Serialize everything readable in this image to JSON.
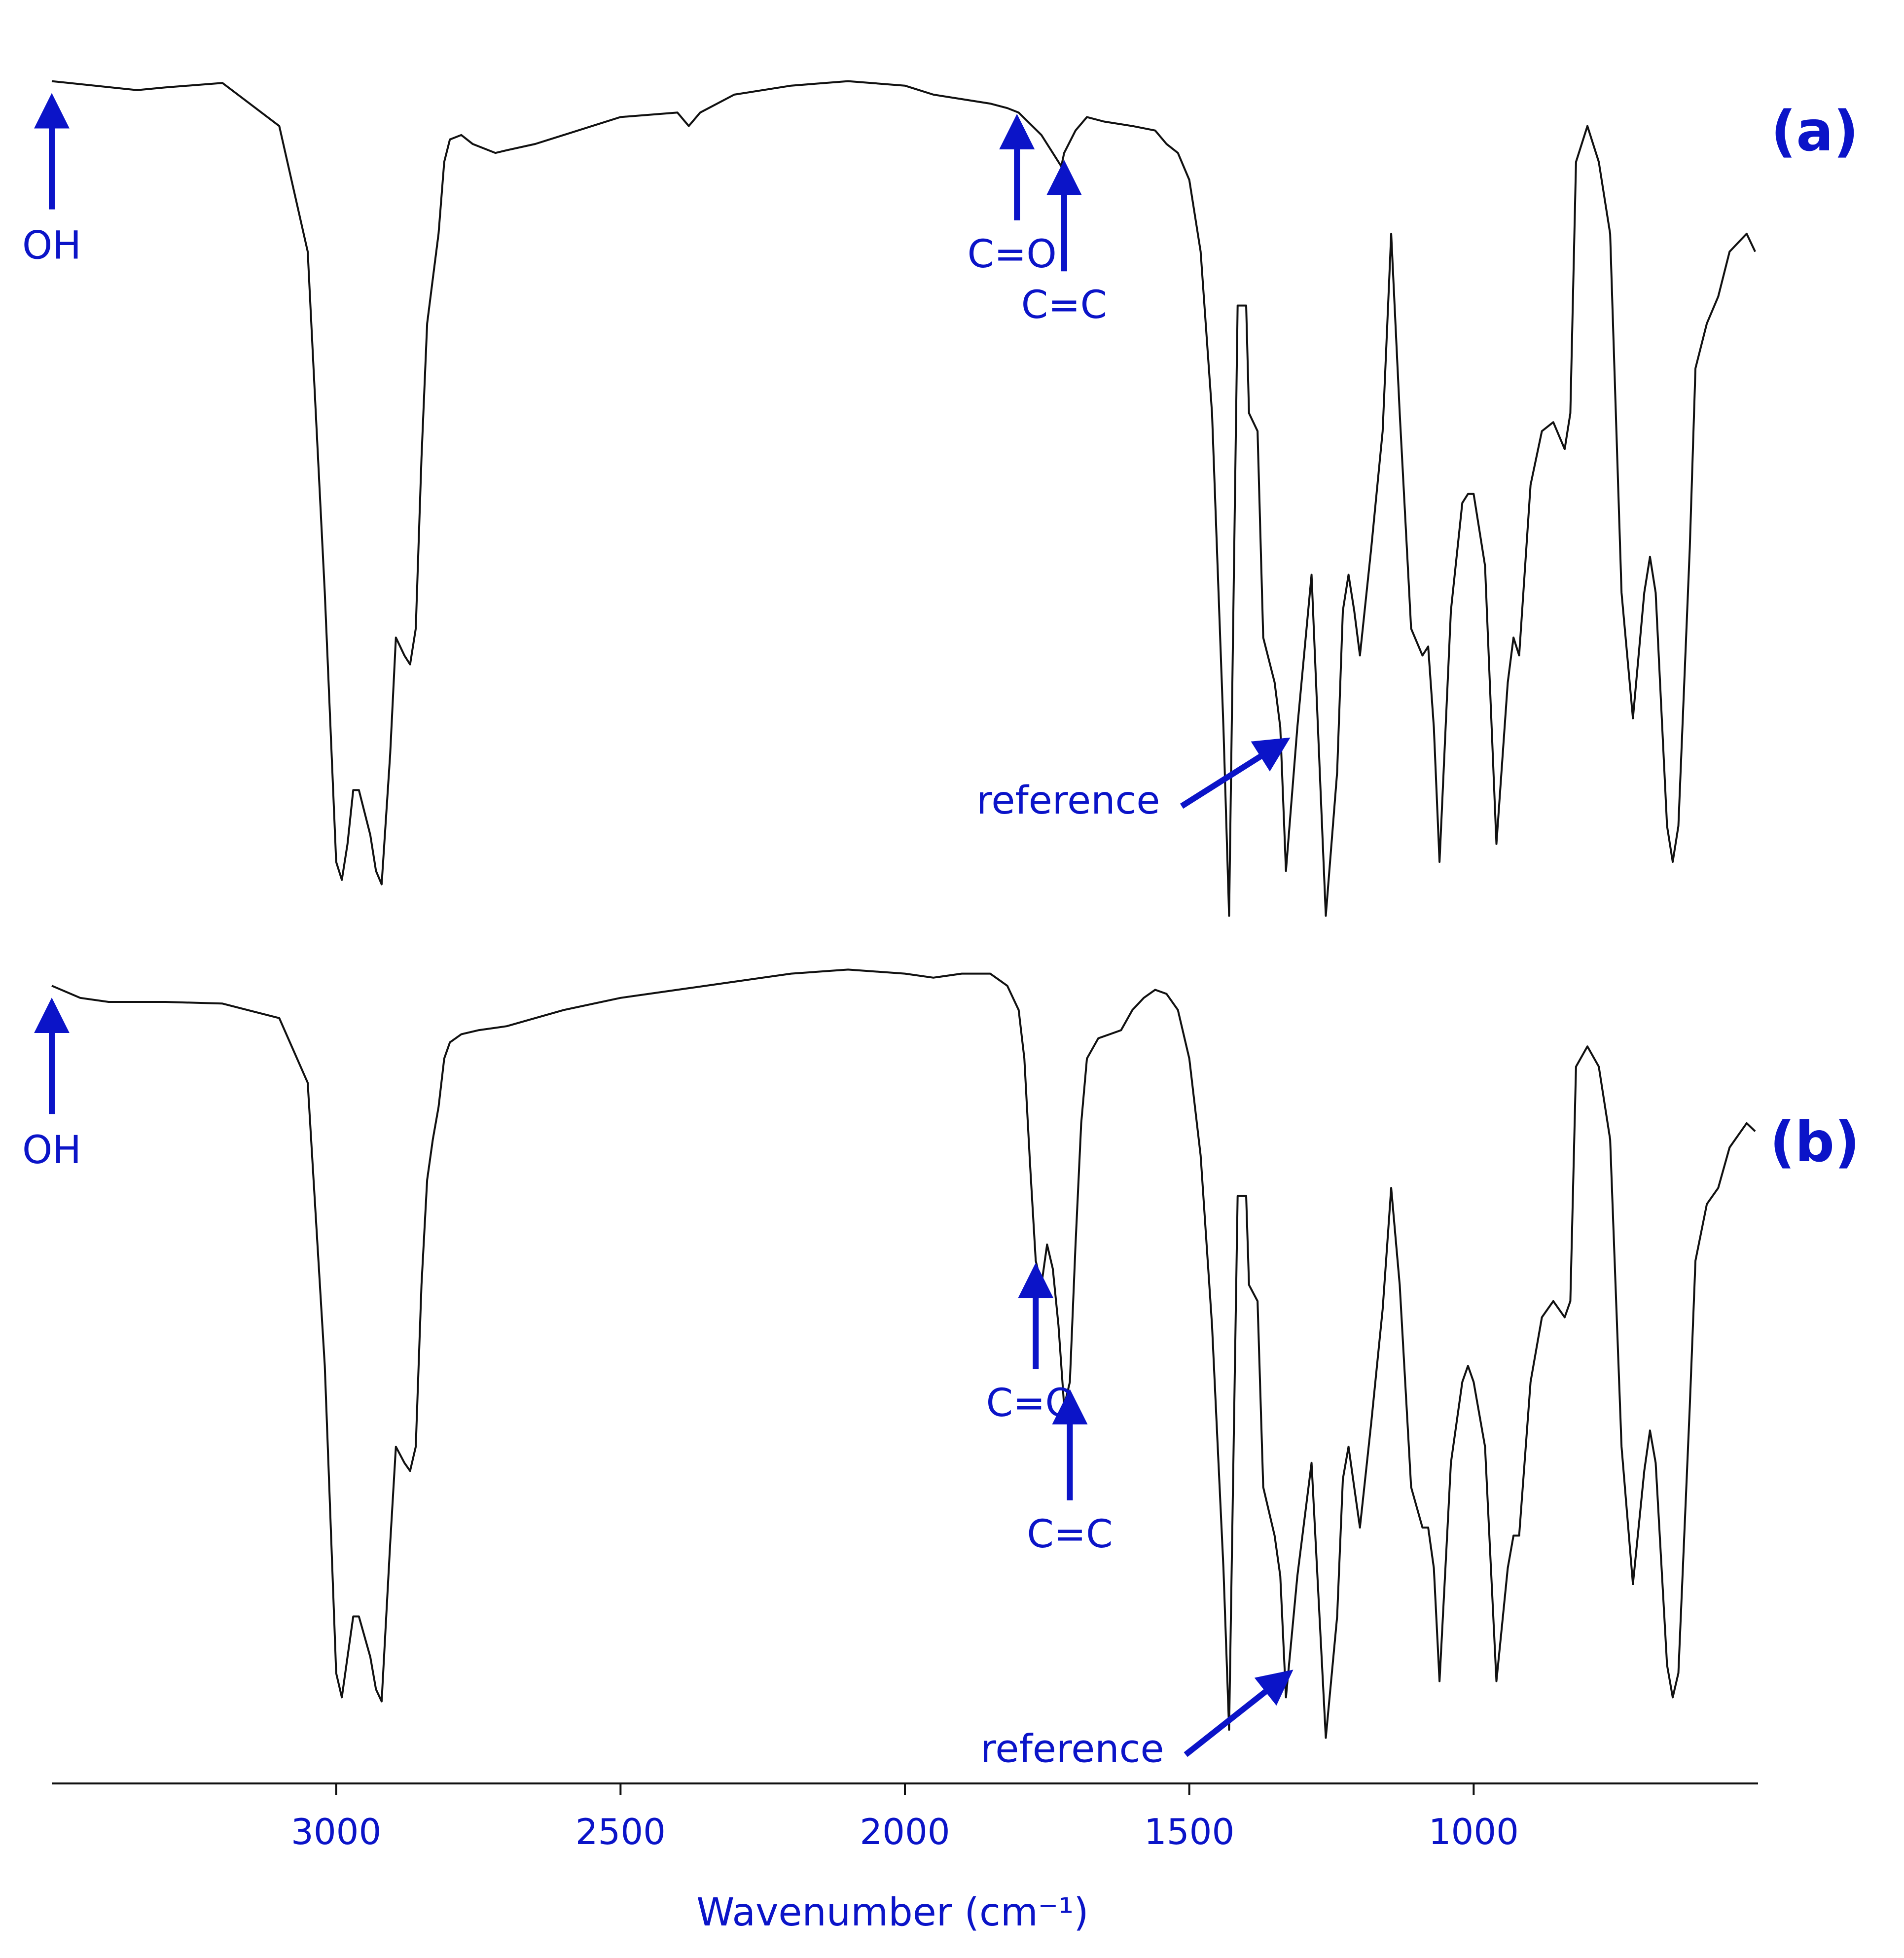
{
  "figure": {
    "annotation_color": "#0b14c8",
    "trace_color": "#111111",
    "panels": [
      {
        "label": "(a)",
        "annotations": [
          {
            "text": "OH",
            "x": 3500
          },
          {
            "text": "C=O",
            "x": 1803
          },
          {
            "text": "C=C",
            "x": 1720
          },
          {
            "text": "reference",
            "x": 1340
          }
        ]
      },
      {
        "label": "(b)",
        "annotations": [
          {
            "text": "OH",
            "x": 3500
          },
          {
            "text": "C=O",
            "x": 1770
          },
          {
            "text": "C=C",
            "x": 1710
          },
          {
            "text": "reference",
            "x": 1333
          }
        ]
      }
    ],
    "xaxis": {
      "label": "Wavenumber (cm⁻¹)",
      "ticks": [
        "3000",
        "2500",
        "2000",
        "1500",
        "1000"
      ]
    }
  },
  "chart_data": {
    "type": "line",
    "title": "",
    "xlabel": "Wavenumber (cm⁻¹)",
    "ylabel": "",
    "xlim": [
      3500,
      500
    ],
    "ylim": [
      0,
      100
    ],
    "x_reversed": true,
    "grid": false,
    "xticks": [
      3000,
      2500,
      2000,
      1500,
      1000
    ],
    "series": [
      {
        "name": "(a)",
        "x": [
          3500,
          3350,
          3300,
          3200,
          3100,
          3050,
          3020,
          3000,
          2990,
          2980,
          2970,
          2960,
          2940,
          2930,
          2920,
          2905,
          2895,
          2880,
          2870,
          2860,
          2850,
          2840,
          2830,
          2820,
          2810,
          2800,
          2780,
          2760,
          2720,
          2700,
          2650,
          2600,
          2500,
          2400,
          2380,
          2360,
          2300,
          2200,
          2100,
          2000,
          1950,
          1900,
          1850,
          1820,
          1800,
          1760,
          1740,
          1725,
          1720,
          1700,
          1680,
          1650,
          1600,
          1560,
          1540,
          1520,
          1500,
          1480,
          1460,
          1440,
          1430,
          1415,
          1400,
          1395,
          1380,
          1370,
          1350,
          1340,
          1330,
          1310,
          1285,
          1260,
          1240,
          1230,
          1220,
          1210,
          1200,
          1180,
          1160,
          1145,
          1130,
          1110,
          1090,
          1080,
          1070,
          1060,
          1040,
          1020,
          1010,
          1000,
          980,
          960,
          940,
          930,
          920,
          900,
          880,
          860,
          840,
          830,
          820,
          800,
          780,
          760,
          740,
          720,
          700,
          690,
          680,
          660,
          650,
          640,
          620,
          610,
          590,
          570,
          550,
          520,
          505
        ],
        "y": [
          97.0,
          96.0,
          96.3,
          96.8,
          92.0,
          78.0,
          40.0,
          10.0,
          8.0,
          12.0,
          18.0,
          18.0,
          13.0,
          9.0,
          7.5,
          22.0,
          35.0,
          33.0,
          32.0,
          36.0,
          55.0,
          70.0,
          75.0,
          80.0,
          88.0,
          90.5,
          91.0,
          90.0,
          89.0,
          89.3,
          90.0,
          91.0,
          93.0,
          93.5,
          92.0,
          93.5,
          95.5,
          96.5,
          97.0,
          96.5,
          95.5,
          95.0,
          94.5,
          94.0,
          93.5,
          91.0,
          89.0,
          87.5,
          89.0,
          91.5,
          93.0,
          92.5,
          92.0,
          91.5,
          90.0,
          89.0,
          86.0,
          78.0,
          60.0,
          25.0,
          4.0,
          72.0,
          72.0,
          60.0,
          58.0,
          35.0,
          30.0,
          25.0,
          9.0,
          25.0,
          42.0,
          4.0,
          20.0,
          38.0,
          42.0,
          38.0,
          33.0,
          45.0,
          58.0,
          80.0,
          60.0,
          36.0,
          33.0,
          34.0,
          25.0,
          10.0,
          38.0,
          50.0,
          51.0,
          51.0,
          43.0,
          12.0,
          30.0,
          35.0,
          33.0,
          52.0,
          58.0,
          59.0,
          56.0,
          60.0,
          88.0,
          92.0,
          88.0,
          80.0,
          40.0,
          26.0,
          40.0,
          44.0,
          40.0,
          14.0,
          10.0,
          14.0,
          45.0,
          65.0,
          70.0,
          73.0,
          78.0,
          80.0,
          78.0
        ]
      },
      {
        "name": "(b)",
        "x": [
          3500,
          3450,
          3400,
          3300,
          3200,
          3100,
          3050,
          3020,
          3000,
          2990,
          2980,
          2970,
          2960,
          2940,
          2930,
          2920,
          2905,
          2895,
          2880,
          2870,
          2860,
          2850,
          2840,
          2830,
          2820,
          2810,
          2800,
          2780,
          2750,
          2700,
          2650,
          2600,
          2500,
          2400,
          2300,
          2200,
          2100,
          2000,
          1950,
          1900,
          1850,
          1820,
          1800,
          1790,
          1780,
          1770,
          1760,
          1750,
          1740,
          1730,
          1720,
          1710,
          1700,
          1690,
          1680,
          1660,
          1640,
          1620,
          1600,
          1580,
          1560,
          1540,
          1520,
          1500,
          1480,
          1460,
          1440,
          1430,
          1415,
          1400,
          1395,
          1380,
          1370,
          1350,
          1340,
          1330,
          1310,
          1285,
          1260,
          1240,
          1230,
          1220,
          1210,
          1200,
          1180,
          1160,
          1145,
          1130,
          1110,
          1090,
          1080,
          1070,
          1060,
          1040,
          1020,
          1010,
          1000,
          980,
          960,
          940,
          930,
          920,
          900,
          880,
          860,
          840,
          830,
          820,
          800,
          780,
          760,
          740,
          720,
          700,
          690,
          680,
          660,
          650,
          640,
          620,
          610,
          590,
          570,
          550,
          520,
          505
        ],
        "y": [
          97.0,
          95.5,
          95.0,
          95.0,
          94.8,
          93.0,
          85.0,
          50.0,
          12.0,
          9.0,
          14.0,
          19.0,
          19.0,
          14.0,
          10.0,
          8.5,
          28.0,
          40.0,
          38.0,
          37.0,
          40.0,
          60.0,
          73.0,
          78.0,
          82.0,
          88.0,
          90.0,
          91.0,
          91.5,
          92.0,
          93.0,
          94.0,
          95.5,
          96.5,
          97.5,
          98.5,
          99.0,
          98.5,
          98.0,
          98.5,
          98.5,
          97.0,
          94.0,
          88.0,
          75.0,
          63.0,
          60.0,
          65.0,
          62.0,
          55.0,
          45.0,
          48.0,
          65.0,
          80.0,
          88.0,
          90.5,
          91.0,
          91.5,
          94.0,
          95.5,
          96.5,
          96.0,
          94.0,
          88.0,
          76.0,
          55.0,
          25.0,
          5.0,
          71.0,
          71.0,
          60.0,
          58.0,
          35.0,
          29.0,
          24.0,
          9.0,
          24.0,
          38.0,
          4.0,
          19.0,
          36.0,
          40.0,
          35.0,
          30.0,
          43.0,
          57.0,
          72.0,
          60.0,
          35.0,
          30.0,
          30.0,
          25.0,
          11.0,
          38.0,
          48.0,
          50.0,
          48.0,
          40.0,
          11.0,
          25.0,
          29.0,
          29.0,
          48.0,
          56.0,
          58.0,
          56.0,
          58.0,
          87.0,
          89.5,
          87.0,
          78.0,
          40.0,
          23.0,
          37.0,
          42.0,
          38.0,
          13.0,
          9.0,
          12.0,
          45.0,
          63.0,
          70.0,
          72.0,
          77.0,
          80.0,
          79.0
        ]
      }
    ]
  }
}
